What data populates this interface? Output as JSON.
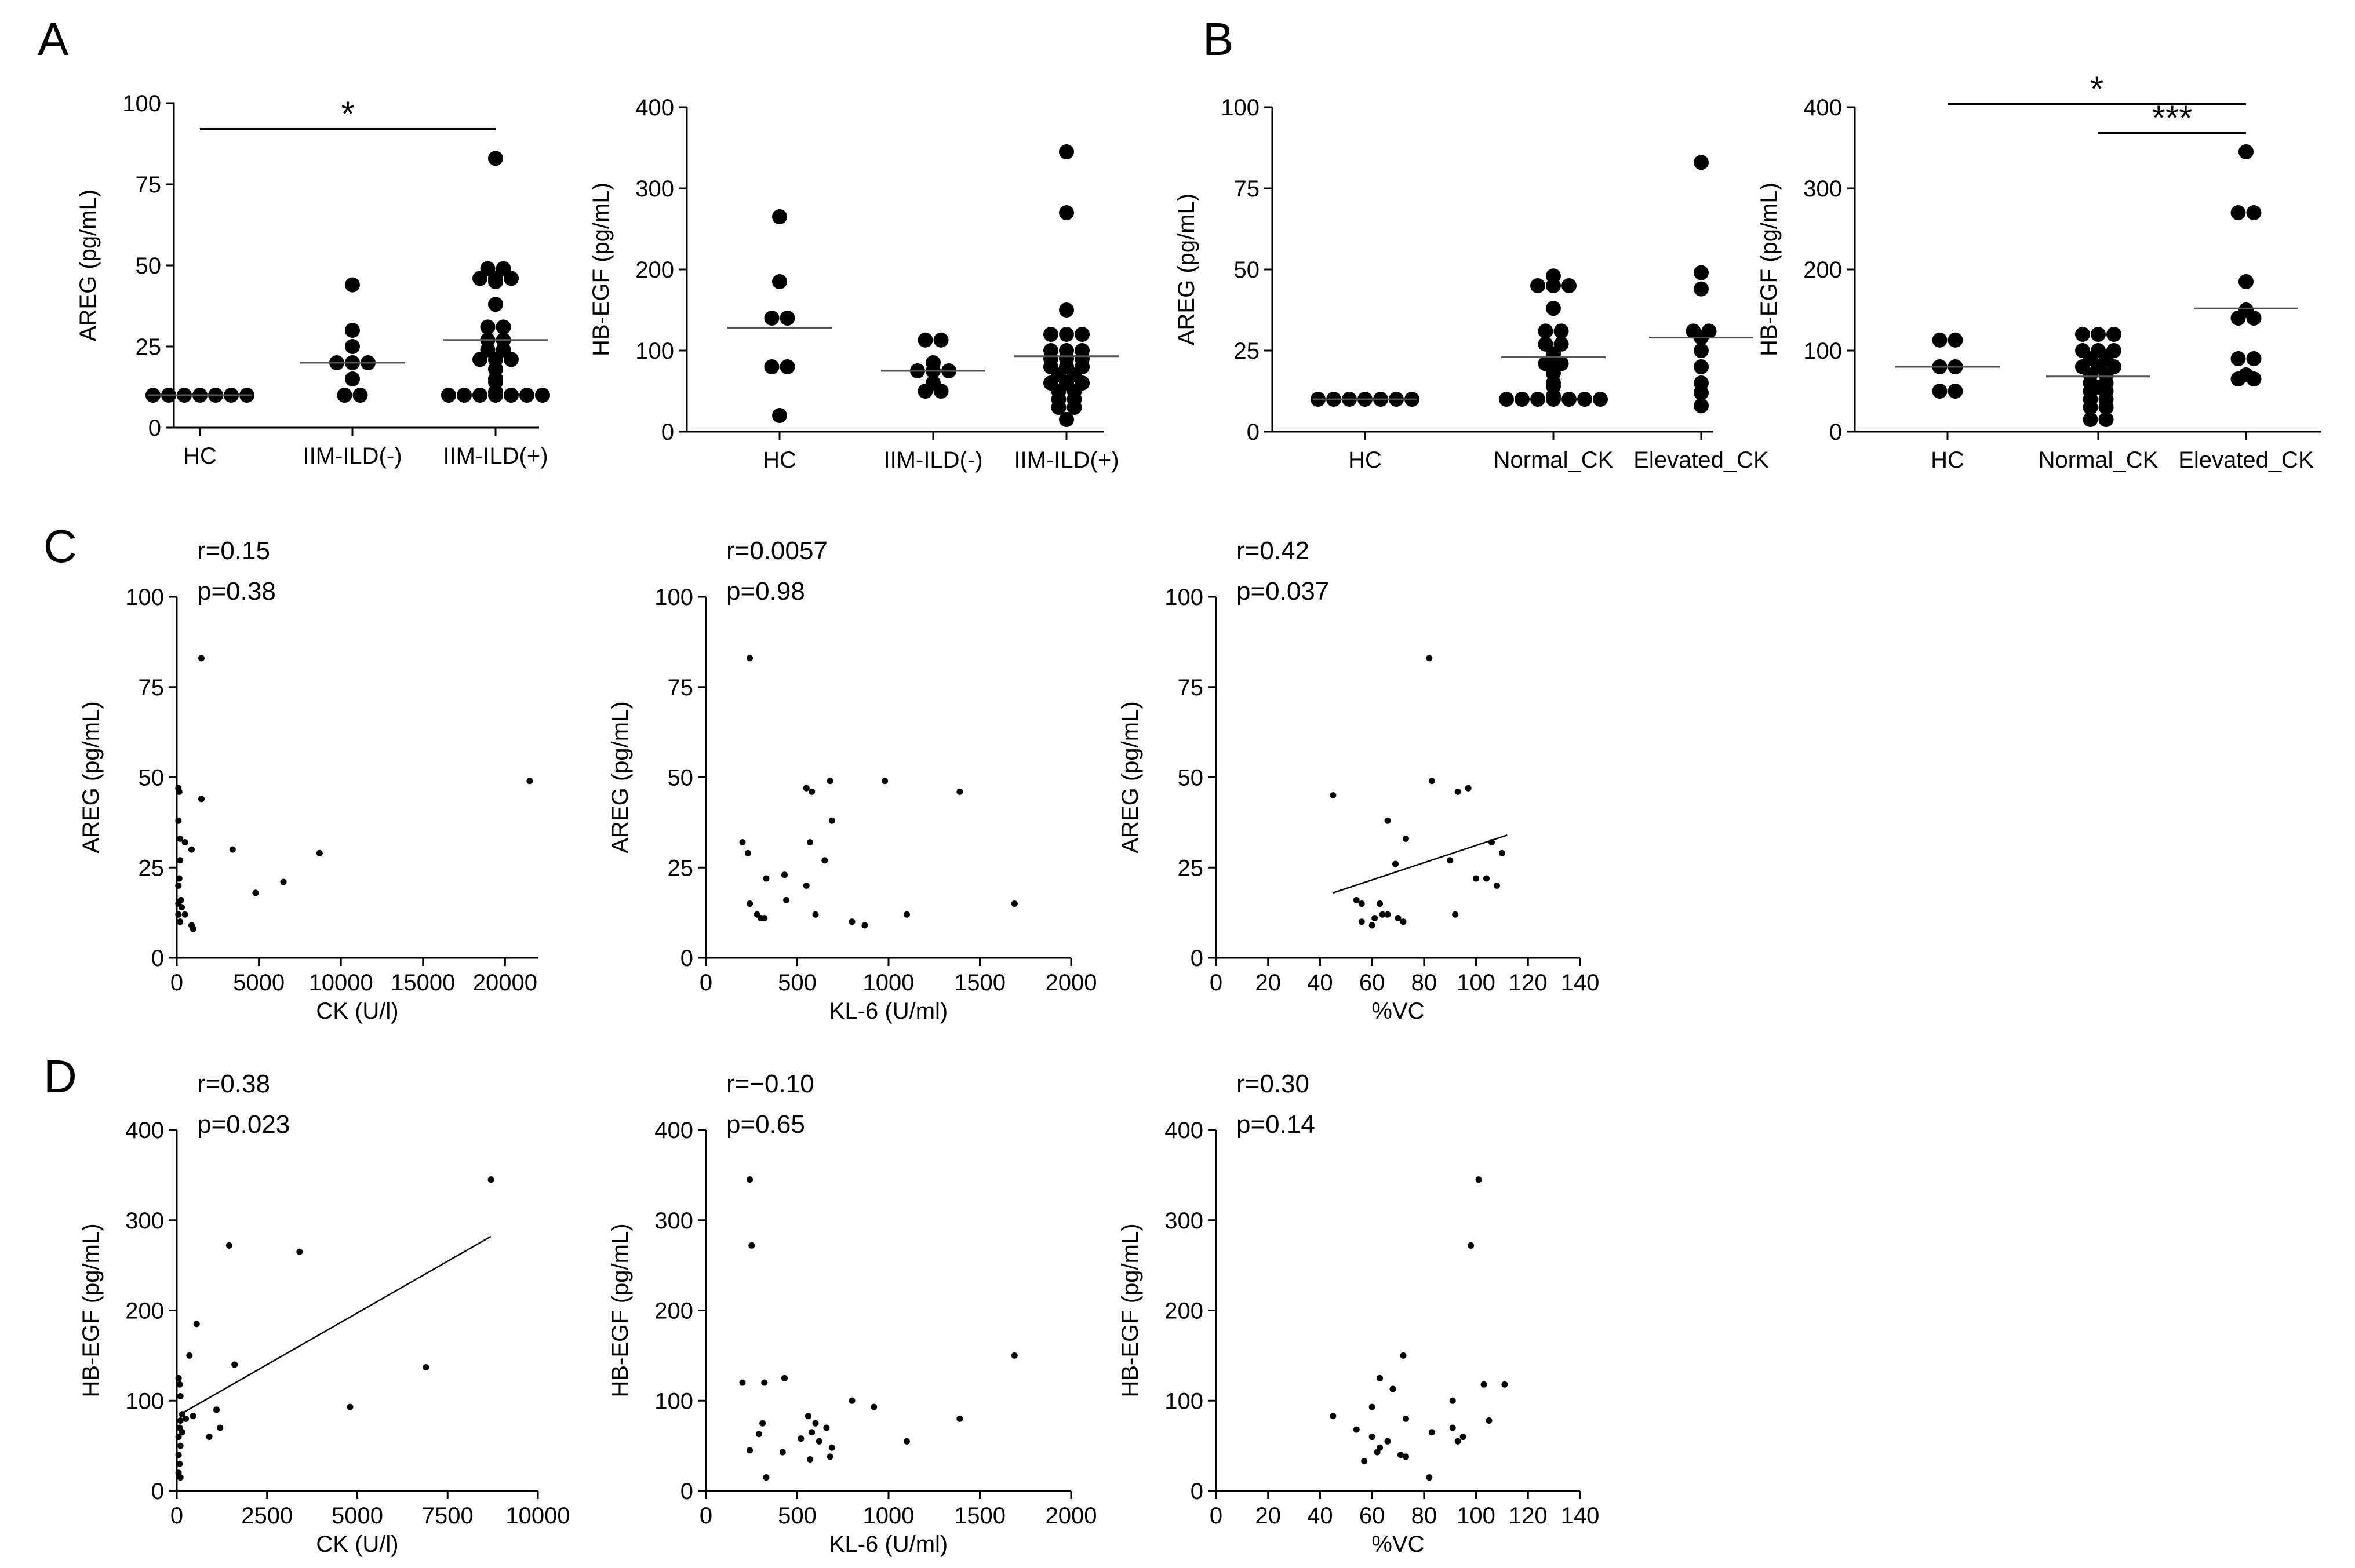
{
  "panel_labels": [
    "A",
    "B",
    "C",
    "D"
  ],
  "chart_data": [
    {
      "type": "scatter",
      "panel": "A",
      "ylabel": "AREG (pg/mL)",
      "ylim": [
        0,
        100
      ],
      "yticks": [
        0,
        25,
        50,
        75,
        100
      ],
      "categories": [
        "HC",
        "IIM-ILD(-)",
        "IIM-ILD(+)"
      ],
      "groups": [
        {
          "values": [
            10,
            10,
            10,
            10,
            10,
            10,
            10
          ],
          "mean": 10
        },
        {
          "values": [
            44,
            30,
            25,
            20,
            20,
            20,
            15,
            10,
            10
          ],
          "mean": 20
        },
        {
          "values": [
            83,
            49,
            49,
            46,
            46,
            46,
            45,
            38,
            31,
            31,
            27,
            27,
            24,
            24,
            21,
            21,
            21,
            18,
            15,
            14,
            11,
            10,
            10,
            10,
            10,
            10,
            10,
            10
          ],
          "mean": 27
        }
      ],
      "significance": [
        {
          "from": 0,
          "to": 2,
          "label": "*"
        }
      ]
    },
    {
      "type": "scatter",
      "panel": "A",
      "ylabel": "HB-EGF (pg/mL)",
      "ylim": [
        0,
        400
      ],
      "yticks": [
        0,
        100,
        200,
        300,
        400
      ],
      "categories": [
        "HC",
        "IIM-ILD(-)",
        "IIM-ILD(+)"
      ],
      "groups": [
        {
          "values": [
            265,
            185,
            140,
            140,
            80,
            80,
            20
          ],
          "mean": 128
        },
        {
          "values": [
            113,
            113,
            85,
            75,
            75,
            75,
            60,
            50,
            50
          ],
          "mean": 75
        },
        {
          "values": [
            345,
            270,
            150,
            120,
            120,
            120,
            100,
            100,
            100,
            90,
            90,
            90,
            80,
            80,
            80,
            70,
            70,
            60,
            60,
            60,
            50,
            50,
            40,
            40,
            30,
            30,
            15
          ],
          "mean": 93
        }
      ],
      "significance": []
    },
    {
      "type": "scatter",
      "panel": "B",
      "ylabel": "AREG (pg/mL)",
      "ylim": [
        0,
        100
      ],
      "yticks": [
        0,
        25,
        50,
        75,
        100
      ],
      "categories": [
        "HC",
        "Normal_CK",
        "Elevated_CK"
      ],
      "groups": [
        {
          "values": [
            10,
            10,
            10,
            10,
            10,
            10,
            10
          ],
          "mean": 10
        },
        {
          "values": [
            48,
            45,
            45,
            45,
            38,
            31,
            31,
            27,
            27,
            24,
            22,
            21,
            21,
            18,
            15,
            14,
            11,
            10,
            10,
            10,
            10,
            10,
            10,
            10
          ],
          "mean": 23
        },
        {
          "values": [
            83,
            49,
            44,
            31,
            31,
            29,
            25,
            20,
            15,
            12,
            8
          ],
          "mean": 29
        }
      ],
      "significance": []
    },
    {
      "type": "scatter",
      "panel": "B",
      "ylabel": "HB-EGF (pg/mL)",
      "ylim": [
        0,
        400
      ],
      "yticks": [
        0,
        100,
        200,
        300,
        400
      ],
      "categories": [
        "HC",
        "Normal_CK",
        "Elevated_CK"
      ],
      "groups": [
        {
          "values": [
            113,
            113,
            80,
            80,
            50,
            50
          ],
          "mean": 80
        },
        {
          "values": [
            120,
            120,
            120,
            100,
            100,
            100,
            90,
            90,
            80,
            80,
            80,
            70,
            70,
            60,
            60,
            55,
            50,
            50,
            40,
            40,
            30,
            30,
            15,
            15
          ],
          "mean": 68
        },
        {
          "values": [
            345,
            270,
            270,
            185,
            150,
            140,
            140,
            90,
            90,
            70,
            65,
            65
          ],
          "mean": 152
        }
      ],
      "significance": [
        {
          "from": 0,
          "to": 2,
          "label": "*"
        },
        {
          "from": 1,
          "to": 2,
          "label": "***"
        }
      ]
    },
    {
      "type": "scatter",
      "panel": "C",
      "xlabel": "CK (U/l)",
      "ylabel": "AREG (pg/mL)",
      "xlim": [
        0,
        22000
      ],
      "xticks": [
        0,
        5000,
        10000,
        15000,
        20000
      ],
      "ylim": [
        0,
        100
      ],
      "yticks": [
        0,
        25,
        50,
        75,
        100
      ],
      "stats": {
        "r": "r=0.15",
        "p": "p=0.38"
      },
      "regression": null,
      "points": [
        [
          1500,
          83
        ],
        [
          21500,
          49
        ],
        [
          100,
          47
        ],
        [
          150,
          46
        ],
        [
          1500,
          44
        ],
        [
          100,
          38
        ],
        [
          200,
          33
        ],
        [
          500,
          32
        ],
        [
          3400,
          30
        ],
        [
          900,
          30
        ],
        [
          8700,
          29
        ],
        [
          6500,
          21
        ],
        [
          4800,
          18
        ],
        [
          200,
          27
        ],
        [
          150,
          22
        ],
        [
          100,
          20
        ],
        [
          250,
          16
        ],
        [
          300,
          14
        ],
        [
          100,
          15
        ],
        [
          200,
          10
        ],
        [
          500,
          12
        ],
        [
          100,
          12
        ],
        [
          200,
          10
        ],
        [
          900,
          9
        ],
        [
          1000,
          8
        ]
      ]
    },
    {
      "type": "scatter",
      "panel": "C",
      "xlabel": "KL-6 (U/ml)",
      "ylabel": "AREG (pg/mL)",
      "xlim": [
        0,
        2000
      ],
      "xticks": [
        0,
        500,
        1000,
        1500,
        2000
      ],
      "ylim": [
        0,
        100
      ],
      "yticks": [
        0,
        25,
        50,
        75,
        100
      ],
      "stats": {
        "r": "r=0.0057",
        "p": "p=0.98"
      },
      "regression": null,
      "points": [
        [
          240,
          83
        ],
        [
          550,
          47
        ],
        [
          580,
          46
        ],
        [
          680,
          49
        ],
        [
          980,
          49
        ],
        [
          1390,
          46
        ],
        [
          690,
          38
        ],
        [
          200,
          32
        ],
        [
          570,
          32
        ],
        [
          230,
          29
        ],
        [
          650,
          27
        ],
        [
          330,
          22
        ],
        [
          430,
          23
        ],
        [
          550,
          20
        ],
        [
          440,
          16
        ],
        [
          240,
          15
        ],
        [
          1690,
          15
        ],
        [
          300,
          11
        ],
        [
          320,
          11
        ],
        [
          280,
          12
        ],
        [
          600,
          12
        ],
        [
          1100,
          12
        ],
        [
          800,
          10
        ],
        [
          870,
          9
        ]
      ]
    },
    {
      "type": "scatter",
      "panel": "C",
      "xlabel": "%VC",
      "ylabel": "AREG (pg/mL)",
      "xlim": [
        0,
        140
      ],
      "xticks": [
        0,
        20,
        40,
        60,
        80,
        100,
        120,
        140
      ],
      "ylim": [
        0,
        100
      ],
      "yticks": [
        0,
        25,
        50,
        75,
        100
      ],
      "stats": {
        "r": "r=0.42",
        "p": "p=0.037"
      },
      "regression": {
        "x": [
          45,
          112
        ],
        "y": [
          18,
          34
        ]
      },
      "points": [
        [
          82,
          83
        ],
        [
          45,
          45
        ],
        [
          83,
          49
        ],
        [
          93,
          46
        ],
        [
          97,
          47
        ],
        [
          66,
          38
        ],
        [
          73,
          33
        ],
        [
          106,
          32
        ],
        [
          90,
          27
        ],
        [
          110,
          29
        ],
        [
          100,
          22
        ],
        [
          104,
          22
        ],
        [
          108,
          20
        ],
        [
          69,
          26
        ],
        [
          54,
          16
        ],
        [
          56,
          15
        ],
        [
          63,
          15
        ],
        [
          64,
          12
        ],
        [
          61,
          11
        ],
        [
          66,
          12
        ],
        [
          70,
          11
        ],
        [
          72,
          10
        ],
        [
          56,
          10
        ],
        [
          60,
          9
        ],
        [
          92,
          12
        ]
      ]
    },
    {
      "type": "scatter",
      "panel": "D",
      "xlabel": "CK (U/l)",
      "ylabel": "HB-EGF (pg/mL)",
      "xlim": [
        0,
        10000
      ],
      "xticks": [
        0,
        2500,
        5000,
        7500,
        10000
      ],
      "ylim": [
        0,
        400
      ],
      "yticks": [
        0,
        100,
        200,
        300,
        400
      ],
      "stats": {
        "r": "r=0.38",
        "p": "p=0.023"
      },
      "regression": {
        "x": [
          100,
          8700
        ],
        "y": [
          85,
          282
        ]
      },
      "points": [
        [
          8700,
          345
        ],
        [
          1450,
          272
        ],
        [
          3400,
          265
        ],
        [
          550,
          185
        ],
        [
          350,
          150
        ],
        [
          1600,
          140
        ],
        [
          6900,
          137
        ],
        [
          50,
          125
        ],
        [
          80,
          118
        ],
        [
          100,
          105
        ],
        [
          4800,
          93
        ],
        [
          1100,
          90
        ],
        [
          150,
          85
        ],
        [
          250,
          80
        ],
        [
          450,
          83
        ],
        [
          100,
          78
        ],
        [
          900,
          60
        ],
        [
          1200,
          70
        ],
        [
          80,
          70
        ],
        [
          150,
          65
        ],
        [
          50,
          60
        ],
        [
          100,
          50
        ],
        [
          50,
          40
        ],
        [
          80,
          30
        ],
        [
          50,
          20
        ],
        [
          100,
          15
        ]
      ]
    },
    {
      "type": "scatter",
      "panel": "D",
      "xlabel": "KL-6 (U/ml)",
      "ylabel": "HB-EGF (pg/mL)",
      "xlim": [
        0,
        2000
      ],
      "xticks": [
        0,
        500,
        1000,
        1500,
        2000
      ],
      "ylim": [
        0,
        400
      ],
      "yticks": [
        0,
        100,
        200,
        300,
        400
      ],
      "stats": {
        "r": "r=−0.10",
        "p": "p=0.65"
      },
      "regression": null,
      "points": [
        [
          240,
          345
        ],
        [
          250,
          272
        ],
        [
          1690,
          150
        ],
        [
          200,
          120
        ],
        [
          430,
          125
        ],
        [
          320,
          120
        ],
        [
          800,
          100
        ],
        [
          920,
          93
        ],
        [
          560,
          83
        ],
        [
          1390,
          80
        ],
        [
          310,
          75
        ],
        [
          600,
          75
        ],
        [
          660,
          70
        ],
        [
          580,
          65
        ],
        [
          290,
          63
        ],
        [
          620,
          55
        ],
        [
          520,
          58
        ],
        [
          1100,
          55
        ],
        [
          240,
          45
        ],
        [
          690,
          48
        ],
        [
          420,
          43
        ],
        [
          570,
          35
        ],
        [
          680,
          38
        ],
        [
          330,
          15
        ]
      ]
    },
    {
      "type": "scatter",
      "panel": "D",
      "xlabel": "%VC",
      "ylabel": "HB-EGF (pg/mL)",
      "xlim": [
        0,
        140
      ],
      "xticks": [
        0,
        20,
        40,
        60,
        80,
        100,
        120,
        140
      ],
      "ylim": [
        0,
        400
      ],
      "yticks": [
        0,
        100,
        200,
        300,
        400
      ],
      "stats": {
        "r": "r=0.30",
        "p": "p=0.14"
      },
      "regression": null,
      "points": [
        [
          101,
          345
        ],
        [
          98,
          272
        ],
        [
          72,
          150
        ],
        [
          63,
          125
        ],
        [
          68,
          113
        ],
        [
          103,
          118
        ],
        [
          111,
          118
        ],
        [
          91,
          100
        ],
        [
          60,
          93
        ],
        [
          45,
          83
        ],
        [
          73,
          80
        ],
        [
          105,
          78
        ],
        [
          91,
          70
        ],
        [
          54,
          68
        ],
        [
          83,
          65
        ],
        [
          95,
          60
        ],
        [
          60,
          60
        ],
        [
          66,
          55
        ],
        [
          63,
          48
        ],
        [
          62,
          43
        ],
        [
          71,
          40
        ],
        [
          93,
          55
        ],
        [
          73,
          38
        ],
        [
          57,
          33
        ],
        [
          82,
          15
        ]
      ]
    }
  ]
}
